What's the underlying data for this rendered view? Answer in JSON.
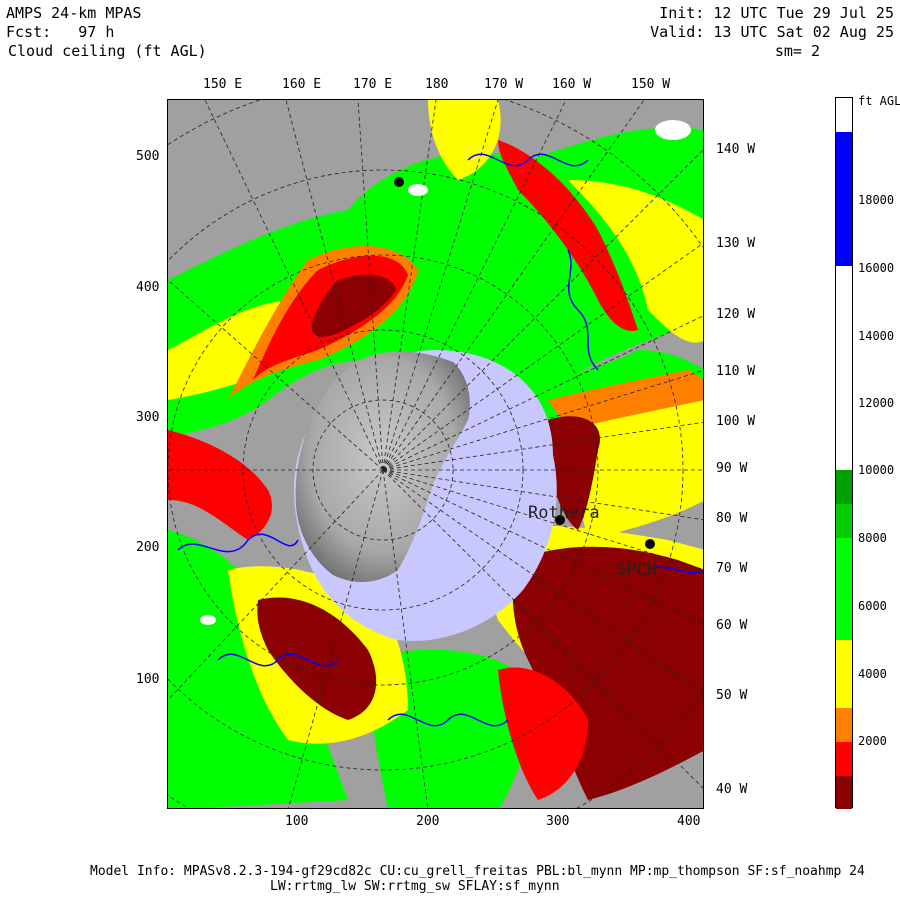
{
  "header": {
    "model": "AMPS 24-km MPAS",
    "fcst": "Fcst:   97 h",
    "field": "Cloud ceiling (ft AGL)",
    "init": "Init: 12 UTC Tue 29 Jul 25",
    "valid": "Valid: 13 UTC Sat 02 Aug 25",
    "smooth": "sm= 2"
  },
  "axes": {
    "x_ticks": [
      "100",
      "200",
      "300",
      "400"
    ],
    "y_ticks": [
      "100",
      "200",
      "300",
      "400",
      "500"
    ],
    "top_lon": [
      "150 E",
      "160 E",
      "170 E",
      "180",
      "170 W",
      "160 W",
      "150 W"
    ],
    "right_lon": [
      "140 W",
      "130 W",
      "120 W",
      "110 W",
      "100 W",
      "90 W",
      "80 W",
      "70 W",
      "60 W",
      "50 W",
      "40 W"
    ]
  },
  "stations": [
    "Rothera",
    "SPCH"
  ],
  "colorbar": {
    "unit": "ft AGL",
    "labels": [
      "18000",
      "16000",
      "14000",
      "12000",
      "10000",
      "8000",
      "6000",
      "4000",
      "2000"
    ],
    "colors": {
      "darkred": "#8b0000",
      "red": "#ff0000",
      "orange": "#ff7f00",
      "yellow": "#ffff00",
      "lgreen": "#00ff00",
      "mgreen": "#00cc00",
      "dgreen": "#00a000",
      "white": "#ffffff",
      "blue": "#0000ff",
      "land": "#a0a0a0",
      "ice": "#c8c8ff"
    }
  },
  "footer": {
    "line1": "Model Info: MPASv8.2.3-194-gf29cd82c CU:cu_grell_freitas PBL:bl_mynn MP:mp_thompson SF:sf_noahmp 24",
    "line2": "LW:rrtmg_lw SW:rrtmg_sw SFLAY:sf_mynn"
  }
}
